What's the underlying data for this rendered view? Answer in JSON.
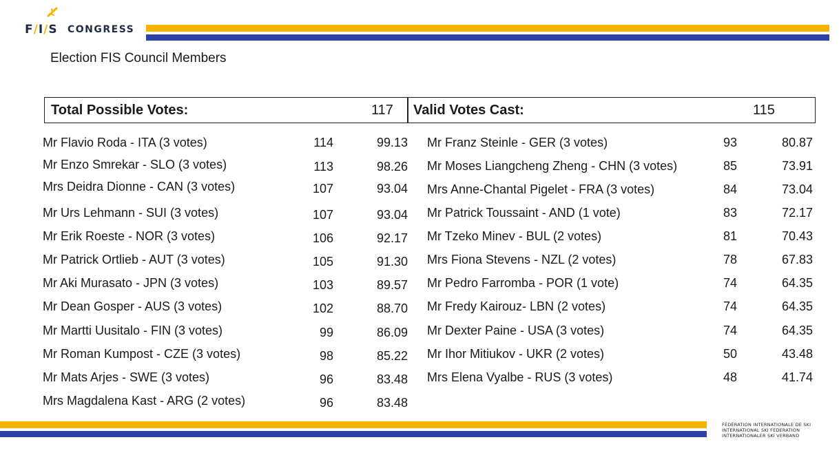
{
  "header": {
    "logo": {
      "fis_text": "FIS",
      "congress_text": "CONGRESS",
      "icon": "snowflake-icon"
    },
    "subtitle": "Election FIS Council Members"
  },
  "summary": {
    "total_label": "Total Possible Votes:",
    "total_value": "117",
    "valid_label": "Valid Votes Cast:",
    "valid_value": "115"
  },
  "left_column": [
    {
      "name": "Mr Flavio Roda - ITA (3 votes)",
      "votes": "114",
      "pct": "99.13"
    },
    {
      "name": "Mr Enzo Smrekar - SLO (3 votes)",
      "votes": "113",
      "pct": "98.26"
    },
    {
      "name": "Mrs Deidra Dionne - CAN (3 votes)",
      "votes": "107",
      "pct": "93.04"
    },
    {
      "name": "Mr Urs Lehmann - SUI (3 votes)",
      "votes": "107",
      "pct": "93.04"
    },
    {
      "name": "Mr Erik Roeste - NOR (3 votes)",
      "votes": "106",
      "pct": "92.17"
    },
    {
      "name": "Mr Patrick Ortlieb - AUT (3 votes)",
      "votes": "105",
      "pct": "91.30"
    },
    {
      "name": "Mr Aki Murasato - JPN (3 votes)",
      "votes": "103",
      "pct": "89.57"
    },
    {
      "name": "Mr Dean Gosper - AUS (3 votes)",
      "votes": "102",
      "pct": "88.70"
    },
    {
      "name": "Mr Martti Uusitalo - FIN (3 votes)",
      "votes": "99",
      "pct": "86.09"
    },
    {
      "name": "Mr Roman Kumpost - CZE (3 votes)",
      "votes": "98",
      "pct": "85.22"
    },
    {
      "name": "Mr Mats Arjes - SWE (3 votes)",
      "votes": "96",
      "pct": "83.48"
    },
    {
      "name": "Mrs Magdalena Kast - ARG (2 votes)",
      "votes": "96",
      "pct": "83.48"
    }
  ],
  "right_column": [
    {
      "name": "Mr Franz Steinle - GER (3 votes)",
      "votes": "93",
      "pct": "80.87"
    },
    {
      "name": "Mr Moses Liangcheng Zheng - CHN (3 votes)",
      "votes": "85",
      "pct": "73.91"
    },
    {
      "name": "Mrs Anne-Chantal Pigelet - FRA (3 votes)",
      "votes": "84",
      "pct": "73.04"
    },
    {
      "name": "Mr Patrick Toussaint - AND (1 vote)",
      "votes": "83",
      "pct": "72.17"
    },
    {
      "name": "Mr Tzeko Minev - BUL (2 votes)",
      "votes": "81",
      "pct": "70.43"
    },
    {
      "name": "Mrs Fiona Stevens - NZL (2 votes)",
      "votes": "78",
      "pct": "67.83"
    },
    {
      "name": "Mr Pedro Farromba - POR (1 vote)",
      "votes": "74",
      "pct": "64.35"
    },
    {
      "name": "Mr Fredy Kairouz- LBN (2 votes)",
      "votes": "74",
      "pct": "64.35"
    },
    {
      "name": "Mr Dexter Paine - USA (3 votes)",
      "votes": "74",
      "pct": "64.35"
    },
    {
      "name": "Mr Ihor Mitiukov - UKR (2 votes)",
      "votes": "50",
      "pct": "43.48"
    },
    {
      "name": "Mrs Elena Vyalbe - RUS (3 votes)",
      "votes": "48",
      "pct": "41.74"
    }
  ],
  "footer": {
    "lines": [
      "FÉDÉRATION INTERNATIONALE DE SKI",
      "INTERNATIONAL SKI FEDERATION",
      "INTERNATIONALER SKI VERBAND"
    ]
  },
  "colors": {
    "yellow": "#f4b400",
    "blue": "#2d43a8"
  }
}
